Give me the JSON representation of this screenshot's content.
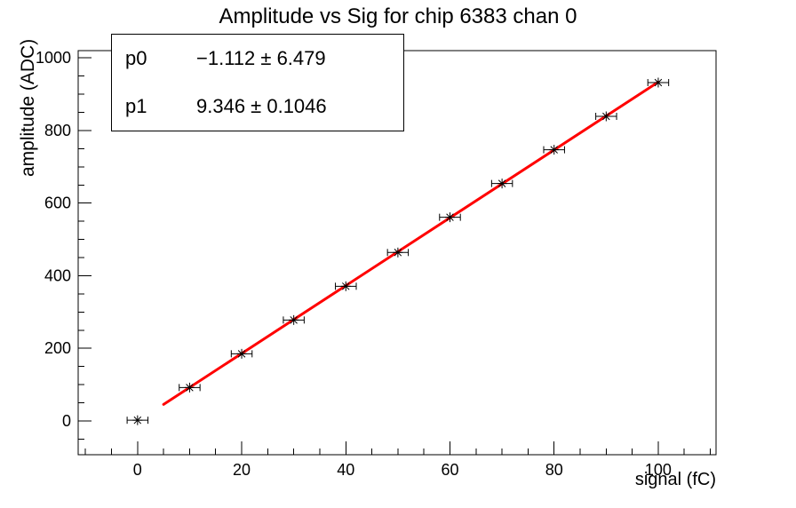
{
  "title": "Amplitude vs Sig for chip 6383 chan 0",
  "stats_box": {
    "rows": [
      {
        "param": "p0",
        "value": "−1.112 ± 6.479"
      },
      {
        "param": "p1",
        "value": "9.346 ± 0.1046"
      }
    ]
  },
  "chart_data": {
    "type": "scatter",
    "title": "Amplitude vs Sig for chip 6383 chan 0",
    "xlabel": "signal (fC)",
    "ylabel": "amplitude (ADC)",
    "xlim": [
      -11.4,
      111.1
    ],
    "ylim": [
      -93,
      1020
    ],
    "x": [
      0,
      10,
      20,
      30,
      40,
      50,
      60,
      70,
      80,
      90,
      100
    ],
    "y": [
      2,
      92,
      185,
      278,
      371,
      464,
      561,
      654,
      747,
      839,
      932
    ],
    "x_error": 2,
    "marker": "asterisk",
    "marker_color": "#000000",
    "axis_color": "#000000",
    "background_color": "#ffffff",
    "fit": {
      "type": "pol1",
      "p0": -1.112,
      "p1": 9.346,
      "x_range": [
        5,
        100
      ],
      "color": "#ff0000",
      "line_width": 3
    },
    "x_ticks": {
      "major": [
        0,
        20,
        40,
        60,
        80,
        100
      ],
      "minor_step": 5
    },
    "y_ticks": {
      "major": [
        0,
        200,
        400,
        600,
        800,
        1000
      ],
      "minor_step": 50
    },
    "grid": false,
    "legend": "none"
  }
}
